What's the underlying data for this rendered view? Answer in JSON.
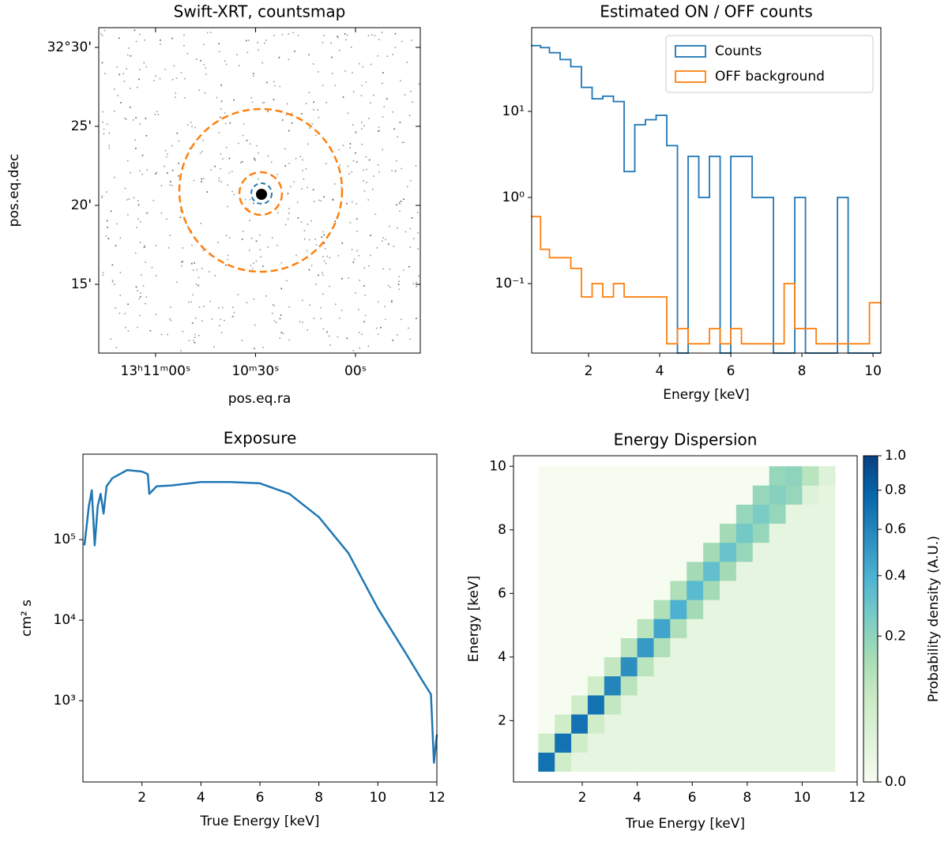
{
  "chart_data": [
    {
      "type": "skymap",
      "title": "Swift-XRT, countsmap",
      "xlabel": "pos.eq.ra",
      "ylabel": "pos.eq.dec",
      "xlim": [
        197.821,
        197.419
      ],
      "ylim": [
        32.1775,
        32.5208
      ],
      "xticks": [
        {
          "value": 197.75,
          "label": "13ʰ11ᵐ00ˢ"
        },
        {
          "value": 197.625,
          "label": "10ᵐ30ˢ"
        },
        {
          "value": 197.5,
          "label": "00ˢ"
        }
      ],
      "yticks": [
        {
          "value": 32.5,
          "label": "32°30'"
        },
        {
          "value": 32.4167,
          "label": "25'"
        },
        {
          "value": 32.3333,
          "label": "20'"
        },
        {
          "value": 32.25,
          "label": "15'"
        }
      ]
    },
    {
      "type": "histogram",
      "title": "Estimated ON / OFF counts",
      "xlabel": "Energy [keV]",
      "ylog": true,
      "xlim": [
        0.4,
        10.22
      ],
      "ylim": [
        0.0156,
        93.8
      ],
      "xticks": [
        2,
        4,
        6,
        8,
        10
      ],
      "yticks": [
        {
          "value": 10,
          "label": "10¹"
        },
        {
          "value": 1,
          "label": "10⁰"
        },
        {
          "value": 0.1,
          "label": "10⁻¹"
        }
      ],
      "legend": "upper right",
      "bins": [
        0.4,
        0.65,
        0.9,
        1.2,
        1.5,
        1.8,
        2.1,
        2.4,
        2.7,
        3.0,
        3.3,
        3.6,
        3.9,
        4.2,
        4.5,
        4.8,
        5.1,
        5.4,
        5.7,
        6.0,
        6.3,
        6.6,
        6.9,
        7.2,
        7.5,
        7.8,
        8.1,
        8.4,
        8.7,
        9.0,
        9.3,
        9.6,
        9.9,
        10.2
      ],
      "series": [
        {
          "name": "Counts",
          "color": "#1f77b4",
          "values": [
            58,
            55,
            48,
            40,
            33,
            19,
            14,
            15,
            13,
            2,
            7,
            8,
            9,
            4,
            0,
            3,
            1,
            3,
            0,
            3,
            3,
            1,
            1,
            0,
            0,
            1,
            0,
            0,
            0,
            1,
            0,
            0,
            0
          ]
        },
        {
          "name": "OFF background",
          "color": "#ff7f0e",
          "values": [
            0.6,
            0.25,
            0.2,
            0.2,
            0.15,
            0.07,
            0.1,
            0.07,
            0.1,
            0.07,
            0.07,
            0.07,
            0.07,
            0.02,
            0.03,
            0.02,
            0.02,
            0.03,
            0.02,
            0.03,
            0.02,
            0.02,
            0.02,
            0.02,
            0.1,
            0.03,
            0.03,
            0.02,
            0.02,
            0.02,
            0.02,
            0.02,
            0.06
          ]
        }
      ]
    },
    {
      "type": "line",
      "title": "Exposure",
      "xlabel": "True Energy [keV]",
      "ylabel": "cm² s",
      "ylog": true,
      "xlim": [
        0,
        12
      ],
      "ylim": [
        98,
        1150000
      ],
      "xticks": [
        2,
        4,
        6,
        8,
        10,
        12
      ],
      "yticks": [
        {
          "value": 100000,
          "label": "10⁵"
        },
        {
          "value": 10000,
          "label": "10⁴"
        },
        {
          "value": 1000,
          "label": "10³"
        }
      ],
      "color": "#1f77b4",
      "x": [
        0.05,
        0.2,
        0.3,
        0.4,
        0.5,
        0.6,
        0.7,
        0.8,
        1.0,
        1.5,
        2.0,
        2.2,
        2.25,
        2.5,
        3.0,
        4.0,
        5.0,
        6.0,
        7.0,
        8.0,
        9.0,
        10.0,
        11.0,
        11.5,
        11.8,
        11.9,
        12.0
      ],
      "values": [
        85000,
        260000,
        410000,
        85000,
        260000,
        370000,
        210000,
        460000,
        580000,
        730000,
        700000,
        650000,
        370000,
        460000,
        470000,
        520000,
        520000,
        500000,
        370000,
        190000,
        68000,
        14000,
        3600,
        1800,
        1200,
        170,
        380
      ]
    },
    {
      "type": "heatmap",
      "title": "Energy Dispersion",
      "xlabel": "True Energy [keV]",
      "ylabel": "Energy [keV]",
      "xlim": [
        -0.5,
        12
      ],
      "ylim": [
        0.07,
        10.33
      ],
      "xticks": [
        2,
        4,
        6,
        8,
        10,
        12
      ],
      "yticks": [
        2,
        4,
        6,
        8,
        10
      ],
      "cmap": "GnBu",
      "colorbar": {
        "label": "Probability density (A.U.)",
        "lim": [
          0,
          1
        ],
        "gamma": 0.5,
        "ticks": [
          {
            "value": 0,
            "label": "0.0"
          },
          0.2,
          0.4,
          0.6,
          0.8,
          {
            "value": 1,
            "label": "1.0"
          }
        ]
      },
      "x_edges": [
        0.4,
        1.0,
        1.6,
        2.2,
        2.8,
        3.4,
        4.0,
        4.6,
        5.2,
        5.8,
        6.4,
        7.0,
        7.6,
        8.2,
        8.8,
        9.4,
        10.0,
        10.6,
        11.2
      ],
      "y_edges": [
        0.4,
        1.0,
        1.6,
        2.2,
        2.8,
        3.4,
        4.0,
        4.6,
        5.2,
        5.8,
        6.4,
        7.0,
        7.6,
        8.2,
        8.8,
        9.4,
        10.0
      ],
      "z": [
        [
          0.7,
          0.05,
          0,
          0,
          0,
          0,
          0,
          0,
          0,
          0,
          0,
          0,
          0,
          0,
          0,
          0
        ],
        [
          0.05,
          0.7,
          0.05,
          0,
          0,
          0,
          0,
          0,
          0,
          0,
          0,
          0,
          0,
          0,
          0,
          0
        ],
        [
          0.01,
          0.05,
          0.7,
          0.05,
          0,
          0,
          0,
          0,
          0,
          0,
          0,
          0,
          0,
          0,
          0,
          0
        ],
        [
          0.01,
          0.01,
          0.05,
          0.7,
          0.05,
          0,
          0,
          0,
          0,
          0,
          0,
          0,
          0,
          0,
          0,
          0
        ],
        [
          0.01,
          0.01,
          0.01,
          0.08,
          0.6,
          0.08,
          0,
          0,
          0,
          0,
          0,
          0,
          0,
          0,
          0,
          0
        ],
        [
          0.01,
          0.01,
          0.01,
          0.01,
          0.1,
          0.55,
          0.1,
          0,
          0,
          0,
          0,
          0,
          0,
          0,
          0,
          0
        ],
        [
          0.01,
          0.01,
          0.01,
          0.01,
          0.01,
          0.1,
          0.5,
          0.1,
          0,
          0,
          0,
          0,
          0,
          0,
          0,
          0
        ],
        [
          0.01,
          0.01,
          0.01,
          0.01,
          0.01,
          0.01,
          0.12,
          0.45,
          0.12,
          0,
          0,
          0,
          0,
          0,
          0,
          0
        ],
        [
          0.01,
          0.01,
          0.01,
          0.01,
          0.01,
          0.01,
          0.01,
          0.12,
          0.4,
          0.12,
          0,
          0,
          0,
          0,
          0,
          0
        ],
        [
          0.01,
          0.01,
          0.01,
          0.01,
          0.01,
          0.01,
          0.01,
          0.01,
          0.15,
          0.35,
          0.15,
          0,
          0,
          0,
          0,
          0
        ],
        [
          0.01,
          0.01,
          0.01,
          0.01,
          0.01,
          0.01,
          0.01,
          0.01,
          0.01,
          0.15,
          0.32,
          0.15,
          0,
          0,
          0,
          0
        ],
        [
          0.01,
          0.01,
          0.01,
          0.01,
          0.01,
          0.01,
          0.01,
          0.01,
          0.01,
          0.01,
          0.15,
          0.3,
          0.15,
          0,
          0,
          0
        ],
        [
          0.01,
          0.01,
          0.01,
          0.01,
          0.01,
          0.01,
          0.01,
          0.01,
          0.01,
          0.01,
          0.01,
          0.18,
          0.27,
          0.18,
          0,
          0
        ],
        [
          0.01,
          0.01,
          0.01,
          0.01,
          0.01,
          0.01,
          0.01,
          0.01,
          0.01,
          0.01,
          0.01,
          0.01,
          0.18,
          0.25,
          0.18,
          0
        ],
        [
          0.01,
          0.01,
          0.01,
          0.01,
          0.01,
          0.01,
          0.01,
          0.01,
          0.01,
          0.01,
          0.01,
          0.01,
          0.01,
          0.18,
          0.22,
          0.18
        ],
        [
          0.01,
          0.01,
          0.01,
          0.01,
          0.01,
          0.01,
          0.01,
          0.01,
          0.01,
          0.01,
          0.01,
          0.01,
          0.01,
          0.01,
          0.18,
          0.2
        ],
        [
          0.01,
          0.01,
          0.01,
          0.01,
          0.01,
          0.01,
          0.01,
          0.01,
          0.01,
          0.01,
          0.01,
          0.01,
          0.01,
          0.01,
          0.02,
          0.1
        ],
        [
          0.01,
          0.01,
          0.01,
          0.01,
          0.01,
          0.01,
          0.01,
          0.01,
          0.01,
          0.01,
          0.01,
          0.01,
          0.01,
          0.01,
          0.01,
          0.02
        ]
      ]
    }
  ]
}
